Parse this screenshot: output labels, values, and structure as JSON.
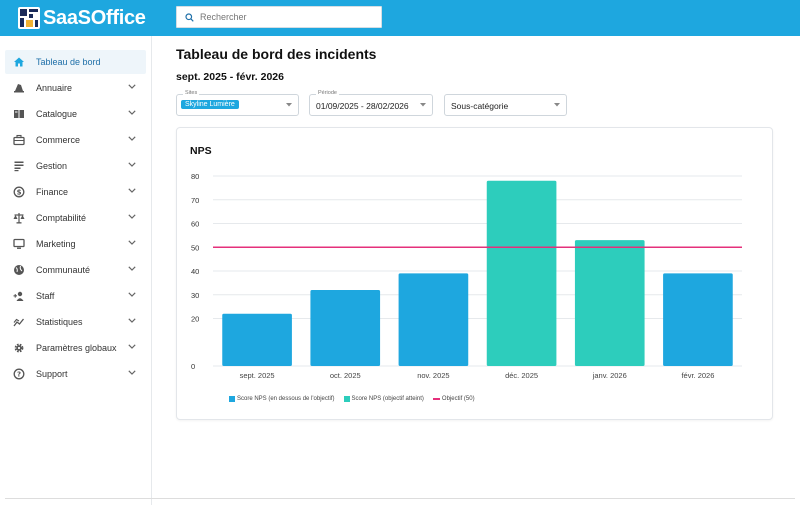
{
  "app": {
    "name": "SaaSOffice"
  },
  "search": {
    "placeholder": "Rechercher"
  },
  "sidebar": {
    "items": [
      {
        "label": "Tableau de bord",
        "icon": "home-icon",
        "active": true,
        "expandable": false
      },
      {
        "label": "Annuaire",
        "icon": "contacts-icon",
        "expandable": true
      },
      {
        "label": "Catalogue",
        "icon": "book-icon",
        "expandable": true
      },
      {
        "label": "Commerce",
        "icon": "briefcase-icon",
        "expandable": true
      },
      {
        "label": "Gestion",
        "icon": "list-icon",
        "expandable": true
      },
      {
        "label": "Finance",
        "icon": "dollar-icon",
        "expandable": true
      },
      {
        "label": "Comptabilité",
        "icon": "scale-icon",
        "expandable": true
      },
      {
        "label": "Marketing",
        "icon": "monitor-icon",
        "expandable": true
      },
      {
        "label": "Communauté",
        "icon": "globe-icon",
        "expandable": true
      },
      {
        "label": "Staff",
        "icon": "user-add-icon",
        "expandable": true
      },
      {
        "label": "Statistiques",
        "icon": "stats-icon",
        "expandable": true
      },
      {
        "label": "Paramètres globaux",
        "icon": "gear-icon",
        "expandable": true
      },
      {
        "label": "Support",
        "icon": "help-icon",
        "expandable": true
      }
    ]
  },
  "page": {
    "title": "Tableau de bord des incidents",
    "date_range": "sept. 2025 - févr. 2026"
  },
  "filters": {
    "sites": {
      "label": "Sites",
      "value": "Skyline Lumière"
    },
    "period": {
      "label": "Période",
      "value": "01/09/2025 - 28/02/2026"
    },
    "subcategory": {
      "value": "Sous-catégorie"
    }
  },
  "card": {
    "title": "NPS"
  },
  "colors": {
    "brand": "#1ea7df",
    "below_target": "#1ea7df",
    "target_reached": "#2dcdbc",
    "objective_line": "#e5307b"
  },
  "chart_data": {
    "type": "bar",
    "title": "NPS",
    "categories": [
      "sept. 2025",
      "oct. 2025",
      "nov. 2025",
      "déc. 2025",
      "janv. 2026",
      "févr. 2026"
    ],
    "series": [
      {
        "name": "Score NPS (en dessous de l'objectif)",
        "values": [
          22,
          32,
          39,
          null,
          null,
          39
        ]
      },
      {
        "name": "Score NPS (objectif atteint)",
        "values": [
          null,
          null,
          null,
          78,
          53,
          null
        ]
      },
      {
        "name": "Objectif (50)",
        "type": "line",
        "value": 50
      }
    ],
    "yticks": [
      0,
      20,
      30,
      40,
      50,
      60,
      70,
      80
    ],
    "ylim": [
      0,
      80
    ],
    "grid": true,
    "legend_position": "bottom"
  }
}
